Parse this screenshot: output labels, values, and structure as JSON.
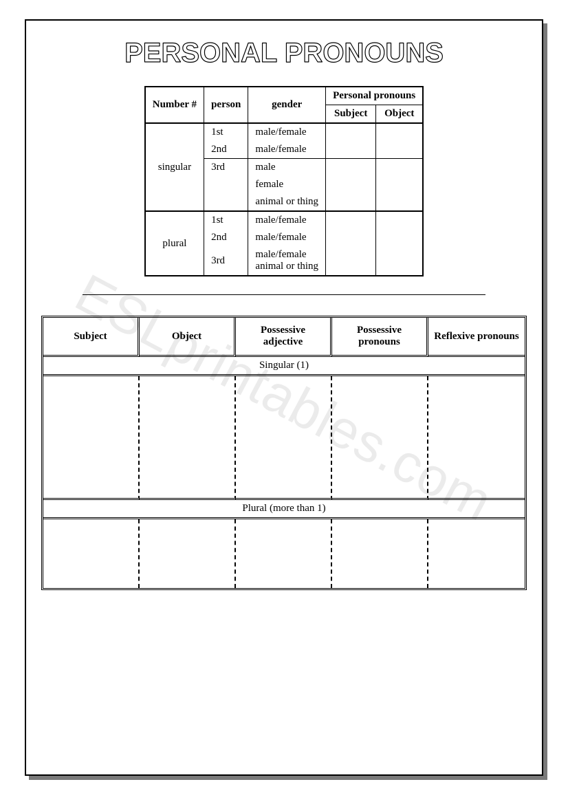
{
  "title": "PERSONAL PRONOUNS",
  "watermark": "ESLprintables.com",
  "table1": {
    "headers": {
      "number": "Number #",
      "person": "person",
      "gender": "gender",
      "pp": "Personal pronouns",
      "subject": "Subject",
      "object": "Object"
    },
    "singular_label": "singular",
    "plural_label": "plural",
    "rows_singular": [
      {
        "person": "1st",
        "gender": "male/female"
      },
      {
        "person": "2nd",
        "gender": "male/female"
      },
      {
        "person": "3rd",
        "gender": "male"
      },
      {
        "person": "",
        "gender": "female"
      },
      {
        "person": "",
        "gender": "animal or thing"
      }
    ],
    "rows_plural": [
      {
        "person": "1st",
        "gender": "male/female"
      },
      {
        "person": "2nd",
        "gender": "male/female"
      },
      {
        "person": "3rd",
        "gender": "male/female\nanimal or thing"
      }
    ]
  },
  "table2": {
    "headers": [
      "Subject",
      "Object",
      "Possessive adjective",
      "Possessive pronouns",
      "Reflexive pronouns"
    ],
    "section_singular": "Singular (1)",
    "section_plural": "Plural (more than 1)",
    "singular_height": 180,
    "plural_height": 100
  },
  "style": {
    "title_fontsize": 40,
    "title_fill": "#ffffff",
    "title_stroke": "#000000",
    "title_stroke_width": 1.2,
    "col_widths_t2": [
      "20%",
      "20%",
      "20%",
      "20%",
      "20%"
    ]
  }
}
